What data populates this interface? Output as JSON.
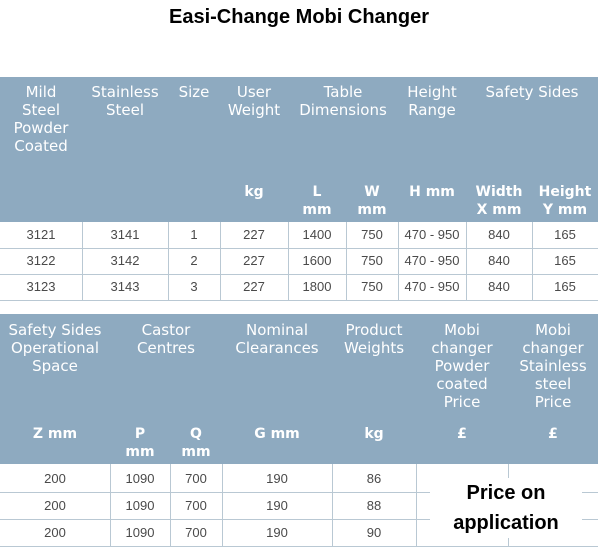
{
  "title": "Easi-Change Mobi Changer",
  "table1": {
    "headers": [
      "Mild\nSteel\nPowder\nCoated",
      "Stainless\nSteel",
      "Size",
      "User\nWeight",
      "Table\nDimensions",
      "Height\nRange",
      "Safety Sides"
    ],
    "units": [
      "kg",
      "L\nmm",
      "W\nmm",
      "H mm",
      "Width\nX mm",
      "Height\nY mm"
    ],
    "rows": [
      [
        "3121",
        "3141",
        "1",
        "227",
        "1400",
        "750",
        "470 - 950",
        "840",
        "165"
      ],
      [
        "3122",
        "3142",
        "2",
        "227",
        "1600",
        "750",
        "470 - 950",
        "840",
        "165"
      ],
      [
        "3123",
        "3143",
        "3",
        "227",
        "1800",
        "750",
        "470 - 950",
        "840",
        "165"
      ]
    ]
  },
  "table2": {
    "headers": [
      "Safety Sides\nOperational\nSpace",
      "Castor\nCentres",
      "Nominal\nClearances",
      "Product\nWeights",
      "Mobi\nchanger\nPowder\ncoated\nPrice",
      "Mobi\nchanger\nStainless\nsteel\nPrice"
    ],
    "units": [
      "Z mm",
      "P\nmm",
      "Q\nmm",
      "G mm",
      "kg",
      "£",
      "£"
    ],
    "rows": [
      [
        "200",
        "1090",
        "700",
        "190",
        "86"
      ],
      [
        "200",
        "1090",
        "700",
        "190",
        "88"
      ],
      [
        "200",
        "1090",
        "700",
        "190",
        "90"
      ]
    ],
    "price_note": "Price on\napplication"
  },
  "colors": {
    "header_bg": "#8eaac0",
    "header_text": "#ffffff",
    "cell_text": "#4a4a4a"
  }
}
